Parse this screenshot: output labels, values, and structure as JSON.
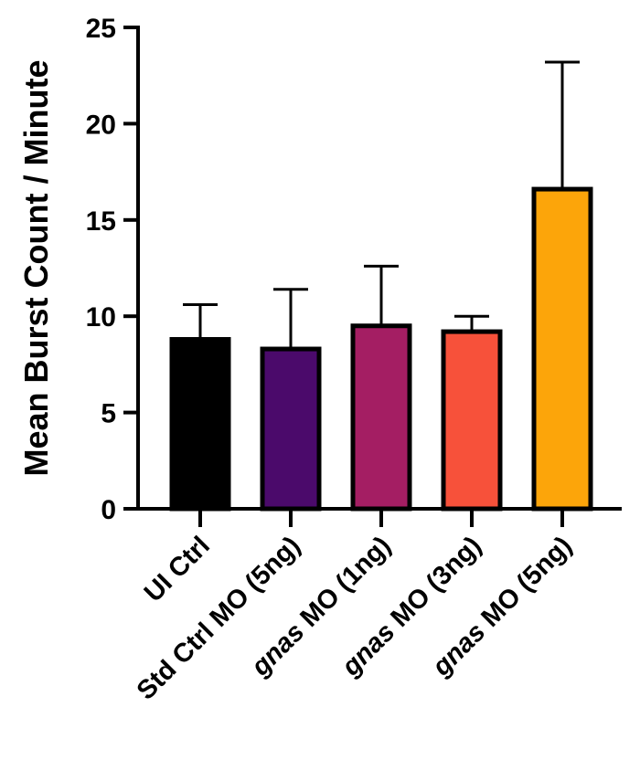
{
  "chart_data": {
    "type": "bar",
    "title": "",
    "xlabel": "",
    "ylabel": "Mean Burst Count / Minute",
    "ylim": [
      0,
      25
    ],
    "yticks": [
      "0",
      "5",
      "10",
      "15",
      "20",
      "25"
    ],
    "categories": [
      {
        "label": "UI Ctrl",
        "italic_prefix": "",
        "rest": "UI Ctrl"
      },
      {
        "label": "Std Ctrl MO (5ng)",
        "italic_prefix": "",
        "rest": "Std Ctrl MO (5ng)"
      },
      {
        "label": "gnas MO (1ng)",
        "italic_prefix": "gnas",
        "rest": " MO (1ng)"
      },
      {
        "label": "gnas MO (3ng)",
        "italic_prefix": "gnas",
        "rest": " MO (3ng)"
      },
      {
        "label": "gnas MO (5ng)",
        "italic_prefix": "gnas",
        "rest": " MO (5ng)"
      }
    ],
    "values": [
      8.8,
      8.3,
      9.5,
      9.2,
      16.6
    ],
    "error_upper": [
      10.6,
      11.4,
      12.6,
      10.0,
      23.2
    ],
    "colors": [
      "#000000",
      "#4b0a6b",
      "#a41e63",
      "#f7513a",
      "#fca50a"
    ],
    "grid": false,
    "legend": "none"
  }
}
